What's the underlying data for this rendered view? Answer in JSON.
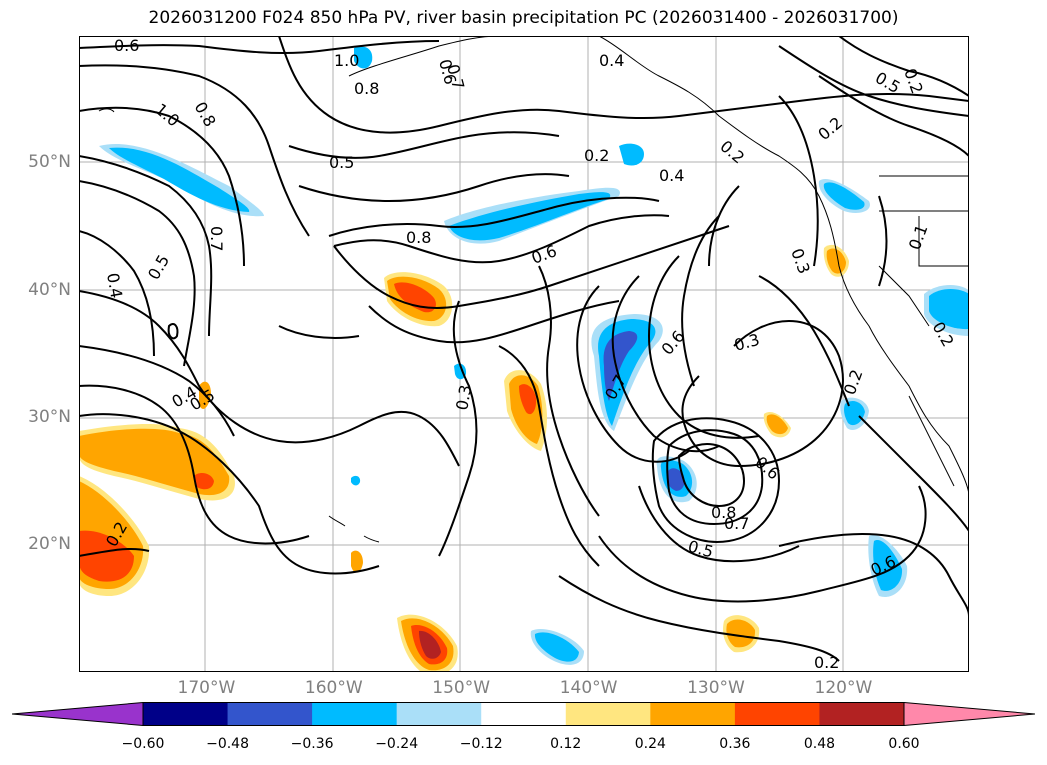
{
  "title": "2026031200 F024 850 hPa PV, river basin precipitation PC (2026031400 - 2026031700)",
  "lat_labels": [
    {
      "text": "50°N",
      "lat": 50
    },
    {
      "text": "40°N",
      "lat": 40
    },
    {
      "text": "30°N",
      "lat": 30
    },
    {
      "text": "20°N",
      "lat": 20
    }
  ],
  "lon_labels": [
    {
      "text": "170°W",
      "lon": -170
    },
    {
      "text": "160°W",
      "lon": -160
    },
    {
      "text": "150°W",
      "lon": -150
    },
    {
      "text": "140°W",
      "lon": -140
    },
    {
      "text": "130°W",
      "lon": -130
    },
    {
      "text": "120°W",
      "lon": -120
    }
  ],
  "colorbar": {
    "ticks": [
      "−0.60",
      "−0.48",
      "−0.36",
      "−0.24",
      "−0.12",
      "0.12",
      "0.24",
      "0.36",
      "0.48",
      "0.60"
    ],
    "colors": [
      "#9933cc",
      "#000088",
      "#3355cc",
      "#00bbff",
      "#aadff8",
      "#ffffff",
      "#ffe680",
      "#ffa500",
      "#ff4400",
      "#b22222",
      "#ff88aa"
    ]
  },
  "contour_labels": [
    {
      "text": "0.6"
    },
    {
      "text": "1.0"
    },
    {
      "text": "0.8"
    },
    {
      "text": "0.7"
    },
    {
      "text": "0.4"
    },
    {
      "text": "0.5"
    },
    {
      "text": "0.2"
    },
    {
      "text": "1.0"
    },
    {
      "text": "0.8"
    },
    {
      "text": "0.5"
    },
    {
      "text": "0.2"
    },
    {
      "text": "0.4"
    },
    {
      "text": "0.2"
    },
    {
      "text": "0.8"
    },
    {
      "text": "0.6"
    },
    {
      "text": "0.7"
    },
    {
      "text": "0.4"
    },
    {
      "text": "0.5"
    },
    {
      "text": "0.3"
    },
    {
      "text": "0.3"
    },
    {
      "text": "0.1"
    },
    {
      "text": "0.6"
    },
    {
      "text": "0.7"
    },
    {
      "text": "0.3"
    },
    {
      "text": "0.4"
    },
    {
      "text": "0.2"
    },
    {
      "text": "0.6"
    },
    {
      "text": "0.8"
    },
    {
      "text": "0.7"
    },
    {
      "text": "0.5"
    },
    {
      "text": "0.6"
    },
    {
      "text": "0.2"
    },
    {
      "text": "0.2"
    },
    {
      "text": "0.2"
    },
    {
      "text": "0.5"
    },
    {
      "text": "0.6"
    },
    {
      "text": "0.2"
    }
  ]
}
